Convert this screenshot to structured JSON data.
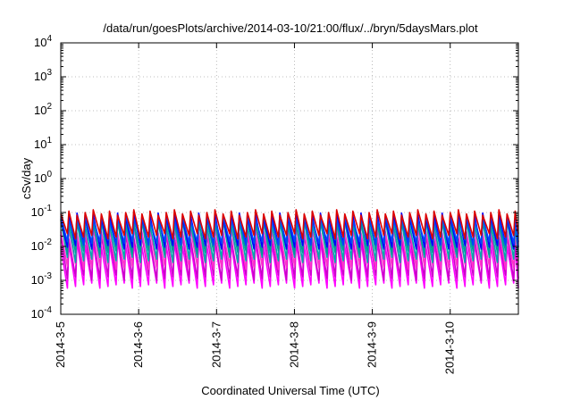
{
  "chart_data": {
    "type": "line",
    "title": "/data/run/goesPlots/archive/2014-03-10/21:00/flux/../bryn/5daysMars.plot",
    "xlabel": "Coordinated Universal Time (UTC)",
    "ylabel": "cSv/day",
    "yscale": "log",
    "ylim": [
      0.0001,
      10000
    ],
    "xlim": [
      "2014-03-05",
      "2014-03-10 21:00"
    ],
    "grid": true,
    "x_tick_labels": [
      "2014-3-5",
      "2014-3-6",
      "2014-3-7",
      "2014-3-8",
      "2014-3-9",
      "2014-3-10"
    ],
    "y_tick_labels": [
      {
        "base": "10",
        "exp": "-4"
      },
      {
        "base": "10",
        "exp": "-3"
      },
      {
        "base": "10",
        "exp": "-2"
      },
      {
        "base": "10",
        "exp": "-1"
      },
      {
        "base": "10",
        "exp": "0"
      },
      {
        "base": "10",
        "exp": "1"
      },
      {
        "base": "10",
        "exp": "2"
      },
      {
        "base": "10",
        "exp": "3"
      },
      {
        "base": "10",
        "exp": "4"
      }
    ],
    "sawtooth_period_hours": 2.5,
    "series": [
      {
        "color": "#ff00ff",
        "peak": 0.012,
        "trough": 0.0007
      },
      {
        "color": "#cc00cc",
        "peak": 0.02,
        "trough": 0.0012
      },
      {
        "color": "#ff33cc",
        "peak": 0.03,
        "trough": 0.0025
      },
      {
        "color": "#00aaaa",
        "peak": 0.05,
        "trough": 0.004
      },
      {
        "color": "#009999",
        "peak": 0.06,
        "trough": 0.007
      },
      {
        "color": "#0000ff",
        "peak": 0.08,
        "trough": 0.01
      },
      {
        "color": "#0044ff",
        "peak": 0.07,
        "trough": 0.013
      },
      {
        "color": "#dd0000",
        "peak": 0.1,
        "trough": 0.02
      }
    ]
  }
}
